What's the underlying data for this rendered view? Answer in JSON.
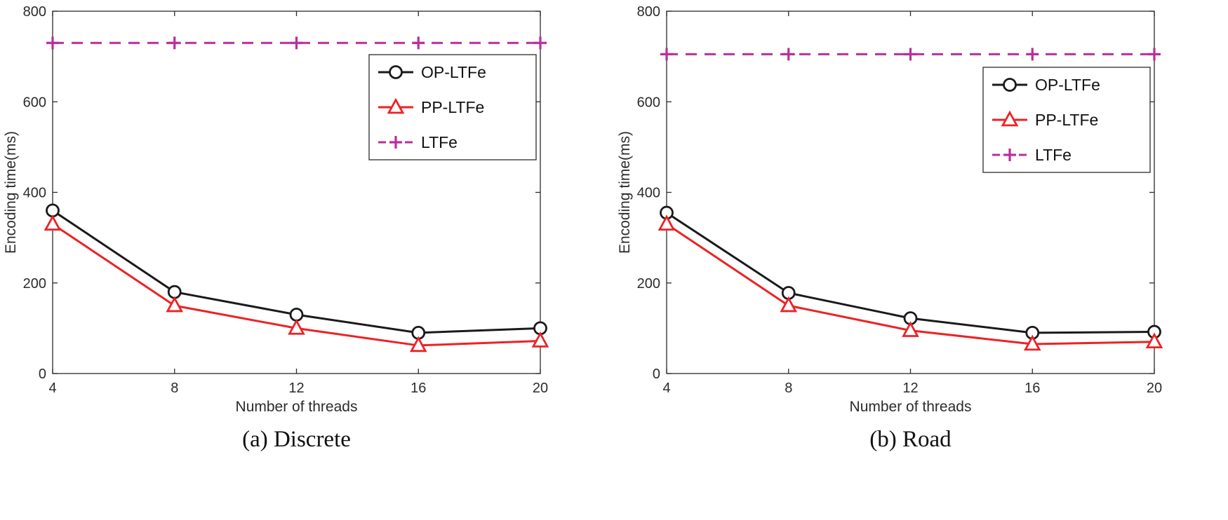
{
  "figure": {
    "background": "#ffffff",
    "ink_color": "#2b2b2b"
  },
  "chart_data": [
    {
      "type": "line",
      "caption": "(a) Discrete",
      "xlabel": "Number of threads",
      "ylabel": "Encoding time(ms)",
      "x": [
        4,
        8,
        12,
        16,
        20
      ],
      "xticks": [
        4,
        8,
        12,
        16,
        20
      ],
      "yticks": [
        0,
        200,
        400,
        600,
        800
      ],
      "xlim": [
        4,
        20
      ],
      "ylim": [
        0,
        800
      ],
      "grid": false,
      "legend_position": "upper-right-inside",
      "legend_offset_y": 62,
      "series": [
        {
          "name": "OP-LTFe",
          "values": [
            360,
            180,
            130,
            90,
            100
          ],
          "color": "#1a1a1a",
          "marker": "circle",
          "line": "solid"
        },
        {
          "name": "PP-LTFe",
          "values": [
            330,
            150,
            100,
            62,
            72
          ],
          "color": "#ec2224",
          "marker": "triangle",
          "line": "solid"
        },
        {
          "name": "LTFe",
          "values": [
            730,
            730,
            730,
            730,
            730
          ],
          "color": "#bb2d9d",
          "marker": "plus",
          "line": "dashed"
        }
      ]
    },
    {
      "type": "line",
      "caption": "(b) Road",
      "xlabel": "Number of threads",
      "ylabel": "Encoding time(ms)",
      "x": [
        4,
        8,
        12,
        16,
        20
      ],
      "xticks": [
        4,
        8,
        12,
        16,
        20
      ],
      "yticks": [
        0,
        200,
        400,
        600,
        800
      ],
      "xlim": [
        4,
        20
      ],
      "ylim": [
        0,
        800
      ],
      "grid": false,
      "legend_position": "upper-right-inside",
      "legend_offset_y": 80,
      "series": [
        {
          "name": "OP-LTFe",
          "values": [
            355,
            178,
            122,
            90,
            92
          ],
          "color": "#1a1a1a",
          "marker": "circle",
          "line": "solid"
        },
        {
          "name": "PP-LTFe",
          "values": [
            330,
            150,
            95,
            65,
            70
          ],
          "color": "#ec2224",
          "marker": "triangle",
          "line": "solid"
        },
        {
          "name": "LTFe",
          "values": [
            705,
            705,
            705,
            705,
            705
          ],
          "color": "#bb2d9d",
          "marker": "plus",
          "line": "dashed"
        }
      ]
    }
  ]
}
